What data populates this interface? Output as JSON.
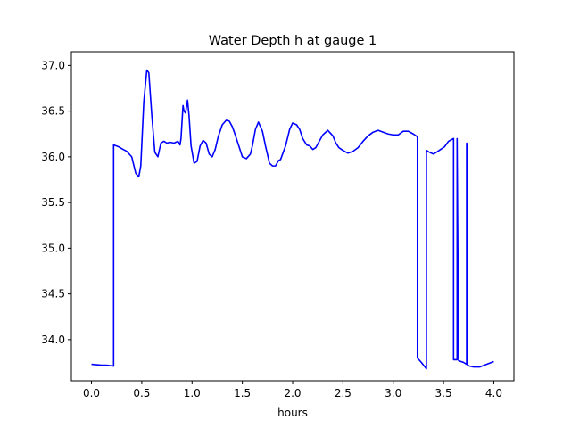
{
  "chart_data": {
    "type": "line",
    "title": "Water Depth h at gauge 1",
    "xlabel": "hours",
    "ylabel": "",
    "xlim": [
      -0.2,
      4.2
    ],
    "ylim": [
      33.55,
      37.15
    ],
    "xticks": [
      0.0,
      0.5,
      1.0,
      1.5,
      2.0,
      2.5,
      3.0,
      3.5,
      4.0
    ],
    "xtick_labels": [
      "0.0",
      "0.5",
      "1.0",
      "1.5",
      "2.0",
      "2.5",
      "3.0",
      "3.5",
      "4.0"
    ],
    "yticks": [
      34.0,
      34.5,
      35.0,
      35.5,
      36.0,
      36.5,
      37.0
    ],
    "ytick_labels": [
      "34.0",
      "34.5",
      "35.0",
      "35.5",
      "36.0",
      "36.5",
      "37.0"
    ],
    "grid": false,
    "series": [
      {
        "color": "#0000ff",
        "x": [
          0.0,
          0.1,
          0.15,
          0.22,
          0.22,
          0.27,
          0.3,
          0.35,
          0.4,
          0.44,
          0.47,
          0.49,
          0.52,
          0.55,
          0.57,
          0.6,
          0.63,
          0.66,
          0.69,
          0.72,
          0.75,
          0.78,
          0.82,
          0.86,
          0.88,
          0.89,
          0.91,
          0.92,
          0.935,
          0.955,
          0.97,
          0.99,
          1.02,
          1.05,
          1.08,
          1.11,
          1.14,
          1.17,
          1.2,
          1.23,
          1.26,
          1.3,
          1.34,
          1.37,
          1.4,
          1.42,
          1.45,
          1.5,
          1.54,
          1.58,
          1.6,
          1.63,
          1.66,
          1.7,
          1.73,
          1.77,
          1.8,
          1.83,
          1.86,
          1.88,
          1.9,
          1.93,
          1.97,
          2.0,
          2.04,
          2.07,
          2.1,
          2.14,
          2.17,
          2.2,
          2.23,
          2.27,
          2.3,
          2.35,
          2.4,
          2.43,
          2.46,
          2.5,
          2.55,
          2.6,
          2.65,
          2.7,
          2.75,
          2.8,
          2.85,
          2.9,
          2.95,
          3.0,
          3.05,
          3.1,
          3.15,
          3.2,
          3.24,
          3.24,
          3.28,
          3.33,
          3.33,
          3.36,
          3.4,
          3.43,
          3.47,
          3.51,
          3.55,
          3.6,
          3.6,
          3.635,
          3.635,
          3.65,
          3.65,
          3.7,
          3.73,
          3.73,
          3.74,
          3.74,
          3.76,
          3.8,
          3.86,
          3.93,
          4.0
        ],
        "y": [
          33.73,
          33.72,
          33.72,
          33.71,
          36.13,
          36.11,
          36.09,
          36.06,
          36.0,
          35.82,
          35.78,
          35.9,
          36.6,
          36.95,
          36.92,
          36.45,
          36.05,
          36.0,
          36.15,
          36.17,
          36.15,
          36.16,
          36.15,
          36.17,
          36.13,
          36.2,
          36.56,
          36.5,
          36.48,
          36.62,
          36.45,
          36.12,
          35.93,
          35.95,
          36.12,
          36.18,
          36.15,
          36.03,
          36.0,
          36.08,
          36.22,
          36.35,
          36.4,
          36.39,
          36.33,
          36.27,
          36.17,
          36.0,
          35.98,
          36.03,
          36.12,
          36.3,
          36.38,
          36.28,
          36.12,
          35.93,
          35.9,
          35.9,
          35.96,
          35.97,
          36.03,
          36.12,
          36.3,
          36.37,
          36.35,
          36.3,
          36.2,
          36.13,
          36.12,
          36.08,
          36.1,
          36.18,
          36.24,
          36.29,
          36.23,
          36.15,
          36.1,
          36.07,
          36.04,
          36.06,
          36.1,
          36.17,
          36.23,
          36.27,
          36.29,
          36.27,
          36.25,
          36.24,
          36.24,
          36.28,
          36.28,
          36.25,
          36.22,
          33.8,
          33.75,
          33.68,
          36.07,
          36.05,
          36.03,
          36.05,
          36.08,
          36.11,
          36.17,
          36.2,
          33.78,
          33.78,
          36.2,
          33.78,
          33.77,
          33.75,
          33.73,
          36.15,
          36.13,
          33.72,
          33.71,
          33.7,
          33.7,
          33.73,
          33.76
        ]
      }
    ]
  }
}
